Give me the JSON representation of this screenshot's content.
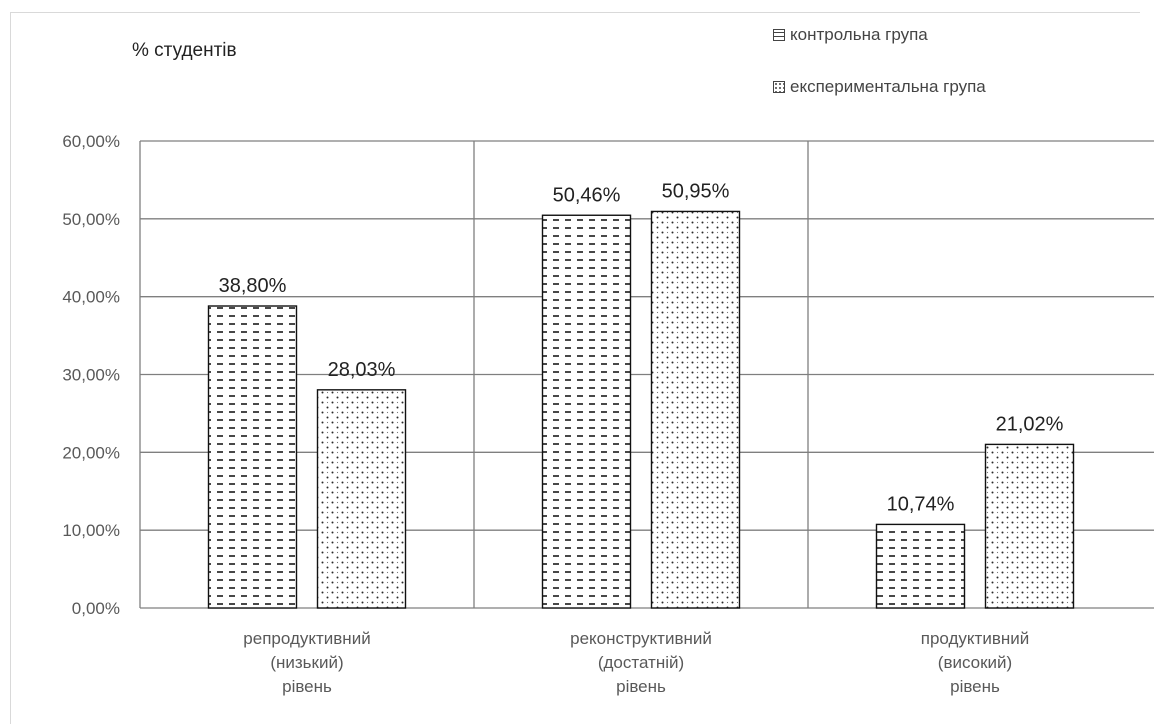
{
  "chart_data": {
    "type": "bar",
    "ylabel": "% студентів",
    "ylim": [
      0,
      60
    ],
    "yticks": [
      "0,00%",
      "10,00%",
      "20,00%",
      "30,00%",
      "40,00%",
      "50,00%",
      "60,00%"
    ],
    "ytick_values": [
      0,
      10,
      20,
      30,
      40,
      50,
      60
    ],
    "categories": [
      [
        "репродуктивний",
        "(низький)",
        "рівень"
      ],
      [
        "реконструктивний",
        "(достатній)",
        "рівень"
      ],
      [
        "продуктивний",
        "(високий)",
        "рівень"
      ]
    ],
    "series": [
      {
        "name": "контрольна група",
        "values": [
          38.8,
          50.46,
          10.74
        ],
        "labels": [
          "38,80%",
          "50,46%",
          "10,74%"
        ]
      },
      {
        "name": "експериментальна група",
        "values": [
          28.03,
          50.95,
          21.02
        ],
        "labels": [
          "28,03%",
          "50,95%",
          "21,02%"
        ]
      }
    ],
    "grid": true,
    "legend_position": "top-right",
    "colors": {
      "bar_stroke": "#111111",
      "grid": "#7f7f7f",
      "axis_text": "#595959"
    }
  }
}
